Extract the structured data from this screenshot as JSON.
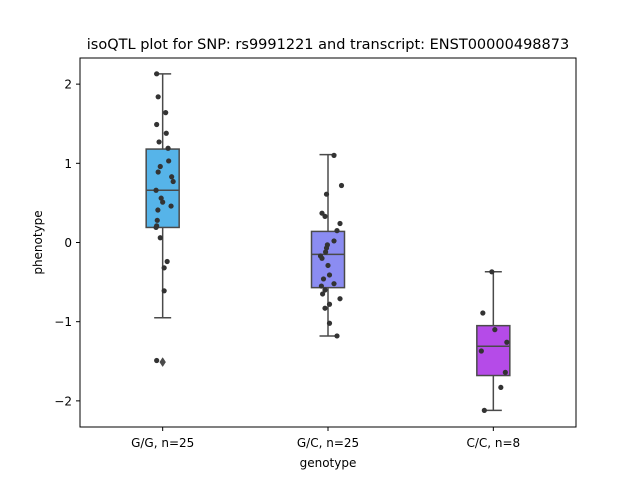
{
  "chart_data": {
    "type": "box",
    "title": "isoQTL plot for SNP: rs9991221 and transcript: ENST00000498873",
    "xlabel": "genotype",
    "ylabel": "phenotype",
    "ylim": [
      -2.33,
      2.33
    ],
    "yticks": [
      2,
      1,
      0,
      -1,
      -2
    ],
    "ytick_labels": [
      "2",
      "1",
      "0",
      "−1",
      "−2"
    ],
    "grid": false,
    "categories": [
      "G/G, n=25",
      "G/C, n=25",
      "C/C, n=8"
    ],
    "boxes": [
      {
        "category": "G/G, n=25",
        "color": "#56b4e9",
        "q1": 0.19,
        "median": 0.66,
        "q3": 1.18,
        "whisker_low": -0.95,
        "whisker_high": 2.13,
        "outliers": [
          -1.51
        ],
        "points": [
          {
            "x": -0.2,
            "y": 2.13
          },
          {
            "x": -0.15,
            "y": 1.84
          },
          {
            "x": 0.1,
            "y": 1.64
          },
          {
            "x": -0.2,
            "y": 1.49
          },
          {
            "x": 0.12,
            "y": 1.38
          },
          {
            "x": -0.12,
            "y": 1.27
          },
          {
            "x": 0.18,
            "y": 1.19
          },
          {
            "x": 0.2,
            "y": 1.03
          },
          {
            "x": -0.08,
            "y": 0.96
          },
          {
            "x": -0.15,
            "y": 0.89
          },
          {
            "x": 0.3,
            "y": 0.83
          },
          {
            "x": 0.35,
            "y": 0.77
          },
          {
            "x": -0.22,
            "y": 0.66
          },
          {
            "x": -0.05,
            "y": 0.56
          },
          {
            "x": 0.0,
            "y": 0.51
          },
          {
            "x": 0.28,
            "y": 0.46
          },
          {
            "x": -0.16,
            "y": 0.41
          },
          {
            "x": -0.18,
            "y": 0.28
          },
          {
            "x": -0.2,
            "y": 0.21
          },
          {
            "x": -0.22,
            "y": 0.19
          },
          {
            "x": -0.08,
            "y": 0.06
          },
          {
            "x": 0.15,
            "y": -0.24
          },
          {
            "x": 0.05,
            "y": -0.32
          },
          {
            "x": 0.05,
            "y": -0.61
          },
          {
            "x": -0.2,
            "y": -1.49
          }
        ]
      },
      {
        "category": "G/C, n=25",
        "color": "#8b8cf2",
        "q1": -0.57,
        "median": -0.15,
        "q3": 0.14,
        "whisker_low": -1.18,
        "whisker_high": 1.11,
        "outliers": [],
        "points": [
          {
            "x": 0.2,
            "y": 1.1
          },
          {
            "x": 0.45,
            "y": 0.72
          },
          {
            "x": -0.05,
            "y": 0.61
          },
          {
            "x": -0.2,
            "y": 0.37
          },
          {
            "x": -0.1,
            "y": 0.33
          },
          {
            "x": 0.4,
            "y": 0.24
          },
          {
            "x": 0.3,
            "y": 0.15
          },
          {
            "x": 0.2,
            "y": 0.02
          },
          {
            "x": -0.02,
            "y": -0.03
          },
          {
            "x": -0.05,
            "y": -0.07
          },
          {
            "x": -0.08,
            "y": -0.12
          },
          {
            "x": -0.25,
            "y": -0.17
          },
          {
            "x": -0.2,
            "y": -0.2
          },
          {
            "x": 0.0,
            "y": -0.29
          },
          {
            "x": 0.05,
            "y": -0.41
          },
          {
            "x": -0.15,
            "y": -0.46
          },
          {
            "x": 0.2,
            "y": -0.52
          },
          {
            "x": -0.22,
            "y": -0.55
          },
          {
            "x": -0.1,
            "y": -0.6
          },
          {
            "x": -0.18,
            "y": -0.65
          },
          {
            "x": 0.4,
            "y": -0.71
          },
          {
            "x": 0.05,
            "y": -0.78
          },
          {
            "x": -0.1,
            "y": -0.83
          },
          {
            "x": 0.05,
            "y": -1.02
          },
          {
            "x": 0.3,
            "y": -1.18
          }
        ]
      },
      {
        "category": "C/C, n=8",
        "color": "#b54be8",
        "q1": -1.68,
        "median": -1.31,
        "q3": -1.05,
        "whisker_low": -2.12,
        "whisker_high": -0.37,
        "outliers": [],
        "points": [
          {
            "x": -0.05,
            "y": -0.37
          },
          {
            "x": -0.35,
            "y": -0.89
          },
          {
            "x": 0.05,
            "y": -1.1
          },
          {
            "x": 0.45,
            "y": -1.26
          },
          {
            "x": -0.4,
            "y": -1.37
          },
          {
            "x": 0.4,
            "y": -1.64
          },
          {
            "x": 0.25,
            "y": -1.83
          },
          {
            "x": -0.3,
            "y": -2.12
          }
        ]
      }
    ]
  }
}
